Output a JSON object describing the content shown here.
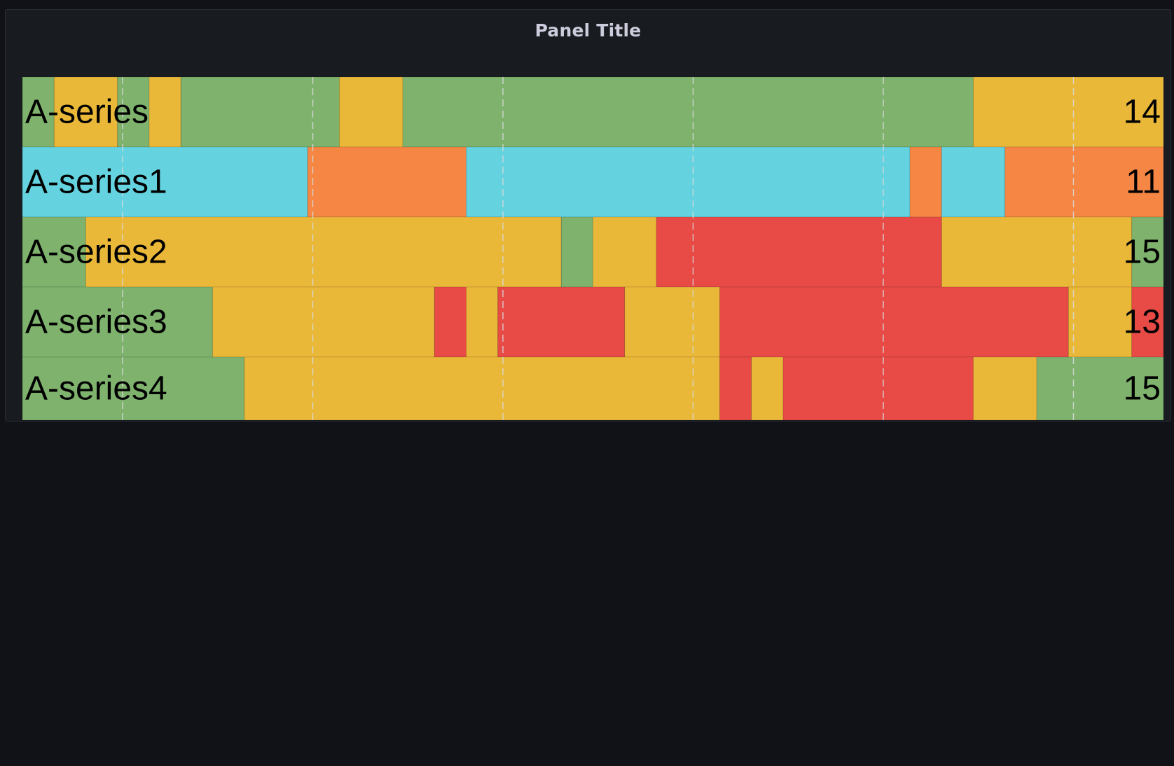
{
  "panel": {
    "title": "Panel Title"
  },
  "colors": {
    "green": "#7eb26d",
    "yellow": "#eab839",
    "cyan": "#64d3df",
    "orange": "#f58644",
    "red": "#e84a46",
    "grid": "#d8d9da",
    "label": "#000000"
  },
  "chart_data": {
    "type": "state-timeline",
    "x_range": [
      0,
      36
    ],
    "grid_x": [
      3.16,
      9.16,
      15.16,
      21.16,
      27.16,
      33.16
    ],
    "series": [
      {
        "name": "A-series",
        "value_label": "14",
        "segments": [
          {
            "from": 0,
            "to": 1,
            "state": "green"
          },
          {
            "from": 1,
            "to": 3,
            "state": "yellow"
          },
          {
            "from": 3,
            "to": 4,
            "state": "green"
          },
          {
            "from": 4,
            "to": 5,
            "state": "yellow"
          },
          {
            "from": 5,
            "to": 10,
            "state": "green"
          },
          {
            "from": 10,
            "to": 12,
            "state": "yellow"
          },
          {
            "from": 12,
            "to": 30,
            "state": "green"
          },
          {
            "from": 30,
            "to": 36,
            "state": "yellow"
          }
        ]
      },
      {
        "name": "A-series1",
        "value_label": "11",
        "segments": [
          {
            "from": 0,
            "to": 9,
            "state": "cyan"
          },
          {
            "from": 9,
            "to": 14,
            "state": "orange"
          },
          {
            "from": 14,
            "to": 28,
            "state": "cyan"
          },
          {
            "from": 28,
            "to": 29,
            "state": "orange"
          },
          {
            "from": 29,
            "to": 31,
            "state": "cyan"
          },
          {
            "from": 31,
            "to": 36,
            "state": "orange"
          }
        ]
      },
      {
        "name": "A-series2",
        "value_label": "15",
        "segments": [
          {
            "from": 0,
            "to": 2,
            "state": "green"
          },
          {
            "from": 2,
            "to": 17,
            "state": "yellow"
          },
          {
            "from": 17,
            "to": 18,
            "state": "green"
          },
          {
            "from": 18,
            "to": 20,
            "state": "yellow"
          },
          {
            "from": 20,
            "to": 29,
            "state": "red"
          },
          {
            "from": 29,
            "to": 35,
            "state": "yellow"
          },
          {
            "from": 35,
            "to": 36,
            "state": "green"
          }
        ]
      },
      {
        "name": "A-series3",
        "value_label": "13",
        "segments": [
          {
            "from": 0,
            "to": 6,
            "state": "green"
          },
          {
            "from": 6,
            "to": 13,
            "state": "yellow"
          },
          {
            "from": 13,
            "to": 14,
            "state": "red"
          },
          {
            "from": 14,
            "to": 15,
            "state": "yellow"
          },
          {
            "from": 15,
            "to": 19,
            "state": "red"
          },
          {
            "from": 19,
            "to": 22,
            "state": "yellow"
          },
          {
            "from": 22,
            "to": 33,
            "state": "red"
          },
          {
            "from": 33,
            "to": 35,
            "state": "yellow"
          },
          {
            "from": 35,
            "to": 36,
            "state": "red"
          }
        ]
      },
      {
        "name": "A-series4",
        "value_label": "15",
        "segments": [
          {
            "from": 0,
            "to": 7,
            "state": "green"
          },
          {
            "from": 7,
            "to": 22,
            "state": "yellow"
          },
          {
            "from": 22,
            "to": 23,
            "state": "red"
          },
          {
            "from": 23,
            "to": 24,
            "state": "yellow"
          },
          {
            "from": 24,
            "to": 30,
            "state": "red"
          },
          {
            "from": 30,
            "to": 32,
            "state": "yellow"
          },
          {
            "from": 32,
            "to": 36,
            "state": "green"
          }
        ]
      }
    ]
  }
}
